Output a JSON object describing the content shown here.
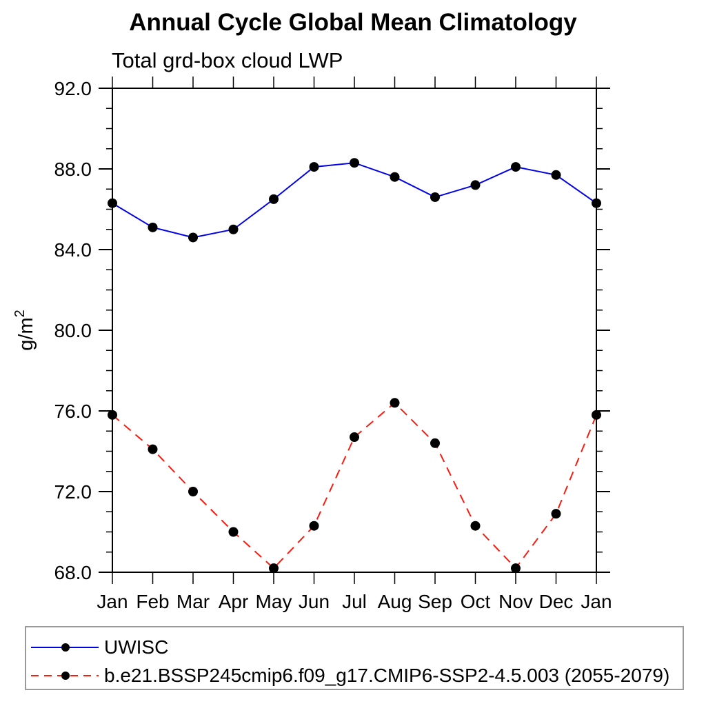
{
  "chart_data": {
    "type": "line",
    "title": "Annual Cycle Global Mean Climatology",
    "subtitle": "Total grd-box cloud LWP",
    "ylabel": "g/m²",
    "xlabel": "",
    "categories": [
      "Jan",
      "Feb",
      "Mar",
      "Apr",
      "May",
      "Jun",
      "Jul",
      "Aug",
      "Sep",
      "Oct",
      "Nov",
      "Dec",
      "Jan"
    ],
    "ylim": [
      68.0,
      92.0
    ],
    "ytick_labels": [
      "68.0",
      "72.0",
      "76.0",
      "80.0",
      "84.0",
      "88.0",
      "92.0"
    ],
    "minor_tick_step": 1.0,
    "grid": false,
    "legend_position": "bottom",
    "series": [
      {
        "name": "UWISC",
        "color": "#0202e6",
        "line_style": "solid",
        "marker": "filled-circle",
        "marker_color": "#000000",
        "values": [
          86.3,
          85.1,
          84.6,
          85.0,
          86.5,
          88.1,
          88.3,
          87.6,
          86.6,
          87.2,
          88.1,
          87.7,
          86.3
        ]
      },
      {
        "name": "b.e21.BSSP245cmip6.f09_g17.CMIP6-SSP2-4.5.003 (2055-2079)",
        "color": "#f71b10",
        "line_style": "dashed",
        "marker": "filled-circle",
        "marker_color": "#000000",
        "values": [
          75.8,
          74.1,
          72.0,
          70.0,
          68.2,
          70.3,
          74.7,
          76.4,
          74.4,
          70.3,
          68.2,
          70.9,
          75.8
        ]
      }
    ]
  }
}
